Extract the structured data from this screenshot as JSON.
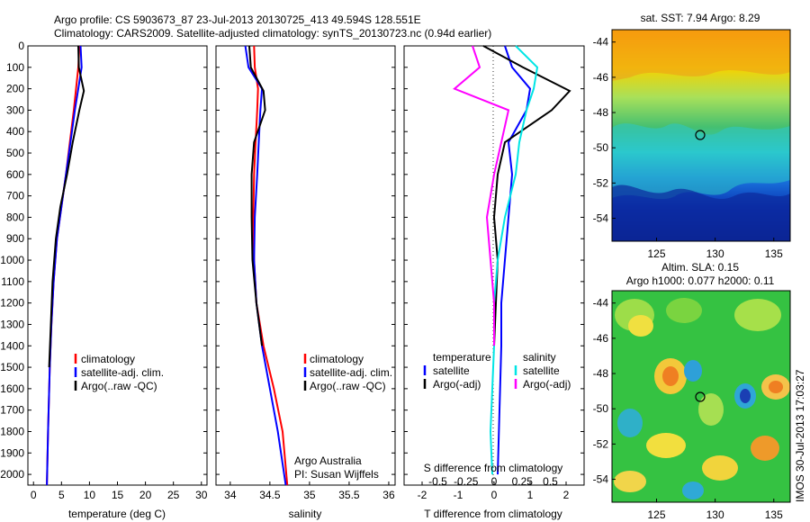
{
  "header": {
    "line1": "Argo profile: CS 5903673_87 23-Jul-2013 20130725_413 49.594S 128.551E",
    "line2": "Climatology: CARS2009. Satellite-adjusted climatology: synTS_20130723.nc (0.94d earlier)"
  },
  "colors": {
    "climatology": "#ff0000",
    "satellite": "#0000ff",
    "argo": "#000000",
    "sal_satellite": "#00e5e5",
    "sal_argo": "#ff00ff"
  },
  "depth_ticks": [
    "0",
    "100",
    "200",
    "300",
    "400",
    "500",
    "600",
    "700",
    "800",
    "900",
    "1000",
    "1100",
    "1200",
    "1300",
    "1400",
    "1500",
    "1600",
    "1700",
    "1800",
    "1900",
    "2000"
  ],
  "panel_temp": {
    "xticks": [
      "0",
      "5",
      "10",
      "15",
      "20",
      "25",
      "30"
    ],
    "xlabel": "temperature (deg C)",
    "legend": [
      "climatology",
      "satellite-adj. clim.",
      "Argo(..raw -QC)"
    ]
  },
  "panel_sal": {
    "xticks": [
      "34",
      "34.5",
      "35",
      "35.5",
      "36"
    ],
    "xlabel": "salinity",
    "legend": [
      "climatology",
      "satellite-adj. clim.",
      "Argo(..raw -QC)"
    ],
    "note1": "Argo Australia",
    "note2": "PI: Susan Wijffels"
  },
  "panel_diff": {
    "top_ticks": [
      "-0.5",
      "-0.25",
      "0",
      "0.25",
      "0.5"
    ],
    "top_label": "S difference from climatology",
    "xticks": [
      "-2",
      "-1",
      "0",
      "1",
      "2"
    ],
    "xlabel": "T difference from climatology",
    "legend_temp_title": "temperature",
    "legend_sal_title": "salinity",
    "legend_temp": [
      "satellite",
      "Argo(-adj)"
    ],
    "legend_sal": [
      "satellite",
      "Argo(-adj)"
    ]
  },
  "map_sst": {
    "title": "sat. SST: 7.94  Argo: 8.29",
    "yticks": [
      "-44",
      "-46",
      "-48",
      "-50",
      "-52",
      "-54"
    ],
    "xticks": [
      "125",
      "130",
      "135"
    ]
  },
  "map_sla": {
    "title1": "Altim. SLA: 0.15",
    "title2": "Argo h1000: 0.077 h2000: 0.11",
    "yticks": [
      "-44",
      "-46",
      "-48",
      "-50",
      "-52",
      "-54"
    ],
    "xticks": [
      "125",
      "130",
      "135"
    ]
  },
  "stamp": "IMOS 30-Jul-2013 17:03:27",
  "chart_data": [
    {
      "type": "line",
      "xlabel": "temperature (deg C)",
      "xlim": [
        -1,
        31
      ],
      "ylim": [
        2050,
        0
      ],
      "series": [
        {
          "name": "climatology",
          "x": [
            8.2,
            8.0,
            7.6,
            7.2,
            6.5,
            5.8,
            5.0,
            4.2,
            3.6,
            3.2,
            2.9,
            2.6,
            2.4
          ],
          "y": [
            0,
            100,
            200,
            300,
            450,
            600,
            750,
            900,
            1100,
            1300,
            1500,
            1800,
            2050
          ]
        },
        {
          "name": "satellite-adj. clim.",
          "x": [
            8.4,
            8.6,
            8.0,
            7.4,
            6.6,
            5.8,
            5.0,
            4.2,
            3.6,
            3.2,
            2.9,
            2.6,
            2.4
          ],
          "y": [
            0,
            100,
            200,
            300,
            450,
            600,
            750,
            900,
            1100,
            1300,
            1500,
            1800,
            2050
          ]
        },
        {
          "name": "Argo(..raw -QC)",
          "x": [
            8.0,
            8.1,
            9.0,
            8.2,
            7.0,
            6.0,
            4.8,
            4.0,
            3.4,
            3.1,
            2.8
          ],
          "y": [
            0,
            100,
            210,
            300,
            450,
            600,
            750,
            900,
            1100,
            1300,
            1500
          ]
        }
      ]
    },
    {
      "type": "line",
      "xlabel": "salinity",
      "xlim": [
        33.82,
        36.08
      ],
      "ylim": [
        2050,
        0
      ],
      "series": [
        {
          "name": "climatology",
          "x": [
            34.3,
            34.31,
            34.35,
            34.34,
            34.32,
            34.3,
            34.29,
            34.3,
            34.33,
            34.42,
            34.55,
            34.66,
            34.72
          ],
          "y": [
            0,
            100,
            200,
            300,
            450,
            600,
            800,
            1000,
            1200,
            1400,
            1600,
            1800,
            2050
          ]
        },
        {
          "name": "satellite-adj. clim.",
          "x": [
            34.19,
            34.23,
            34.4,
            34.38,
            34.36,
            34.34,
            34.31,
            34.3,
            34.33,
            34.4,
            34.5,
            34.6,
            34.7
          ],
          "y": [
            0,
            100,
            200,
            300,
            450,
            600,
            800,
            1000,
            1200,
            1400,
            1600,
            1800,
            2050
          ]
        },
        {
          "name": "Argo(..raw -QC)",
          "x": [
            34.24,
            34.26,
            34.42,
            34.44,
            34.3,
            34.27,
            34.27,
            34.28,
            34.33,
            34.4
          ],
          "y": [
            0,
            100,
            210,
            300,
            450,
            600,
            800,
            1000,
            1200,
            1400
          ]
        }
      ]
    },
    {
      "type": "line",
      "xlabel": "T difference from climatology",
      "x2label": "S difference from climatology",
      "xlim": [
        -2.5,
        2.5
      ],
      "ylim": [
        2050,
        0
      ],
      "series": [
        {
          "name": "satellite",
          "x": [
            0.3,
            0.5,
            1.0,
            0.9,
            0.4,
            0.5,
            0.4,
            0.3,
            0.2,
            0.2,
            0.1
          ],
          "y": [
            0,
            100,
            200,
            300,
            450,
            600,
            800,
            1000,
            1200,
            1400,
            2000
          ]
        },
        {
          "name": "Argo(-adj)",
          "x": [
            -0.3,
            0.8,
            2.1,
            1.6,
            0.3,
            0.1,
            0.0,
            0.1,
            0.05,
            0.0
          ],
          "y": [
            0,
            100,
            210,
            300,
            450,
            600,
            800,
            1000,
            1200,
            1400
          ]
        },
        {
          "name": "satellite",
          "x": [
            0.6,
            1.2,
            1.1,
            0.9,
            0.7,
            0.6,
            0.3,
            0.1,
            0.0,
            0.0,
            -0.1,
            -0.05
          ],
          "y": [
            0,
            100,
            200,
            300,
            450,
            600,
            800,
            1000,
            1200,
            1400,
            1800,
            2000
          ]
        },
        {
          "name": "Argo(-adj)",
          "x": [
            -0.6,
            -0.4,
            -1.1,
            0.4,
            0.2,
            0.0,
            -0.2,
            -0.1,
            0.0,
            0.0
          ],
          "y": [
            0,
            100,
            200,
            300,
            450,
            600,
            800,
            1000,
            1200,
            1400
          ]
        }
      ]
    }
  ]
}
